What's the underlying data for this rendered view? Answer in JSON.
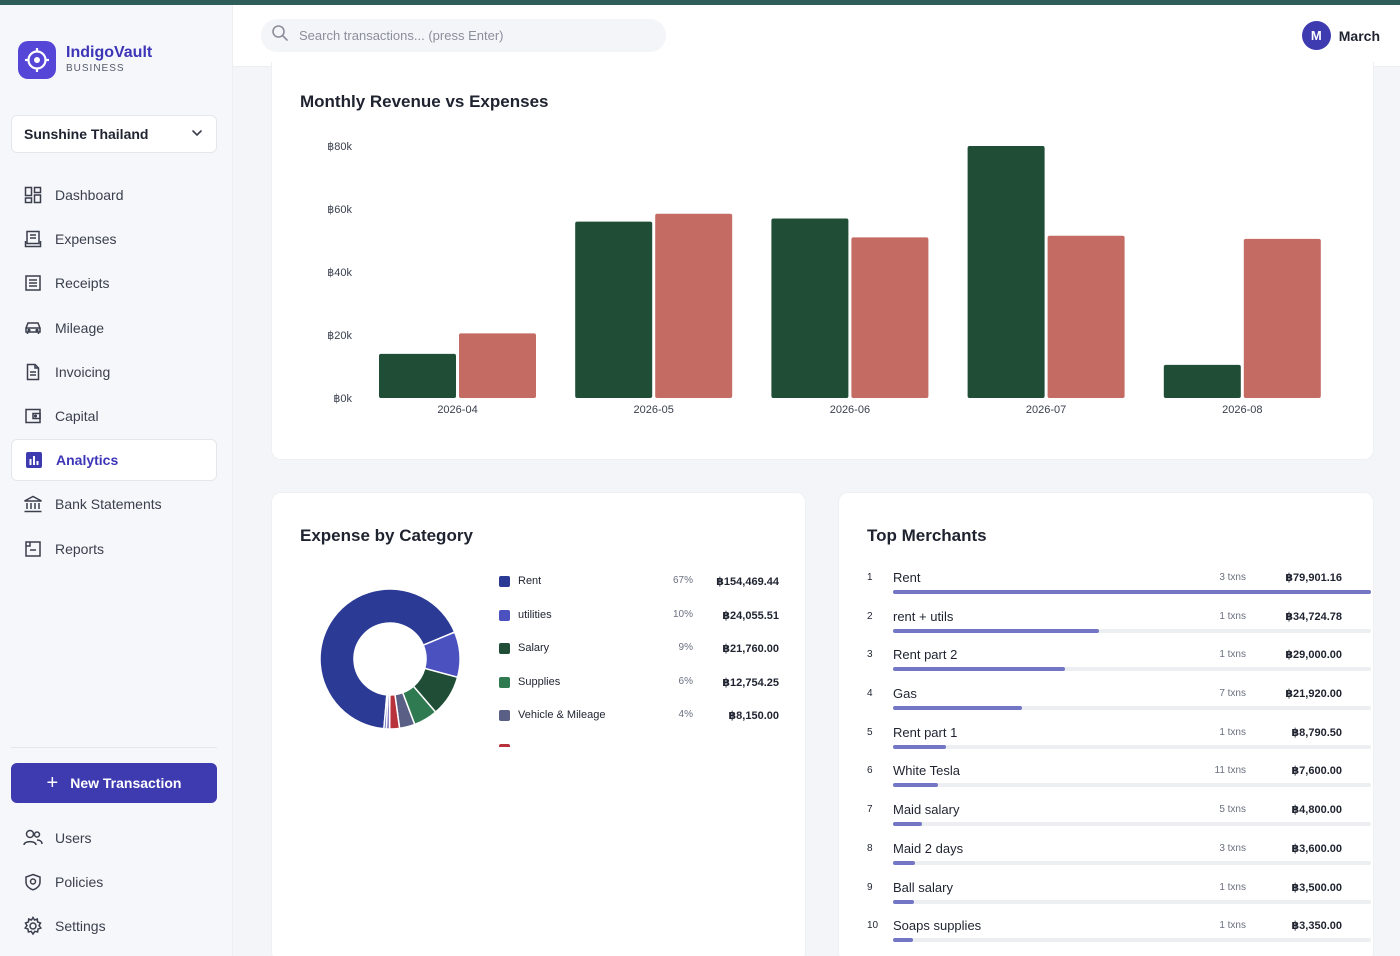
{
  "brand": {
    "name": "IndigoVault",
    "subtitle": "BUSINESS"
  },
  "org_selector": {
    "value": "Sunshine Thailand"
  },
  "nav": [
    {
      "label": "Dashboard",
      "icon": "dashboard-icon"
    },
    {
      "label": "Expenses",
      "icon": "expenses-icon"
    },
    {
      "label": "Receipts",
      "icon": "receipts-icon"
    },
    {
      "label": "Mileage",
      "icon": "car-icon"
    },
    {
      "label": "Invoicing",
      "icon": "invoice-icon"
    },
    {
      "label": "Capital",
      "icon": "wallet-icon"
    },
    {
      "label": "Analytics",
      "icon": "analytics-icon",
      "active": true
    },
    {
      "label": "Bank Statements",
      "icon": "bank-icon"
    },
    {
      "label": "Reports",
      "icon": "reports-icon"
    }
  ],
  "new_transaction": {
    "label": "New Transaction"
  },
  "nav_bottom": [
    {
      "label": "Users",
      "icon": "users-icon"
    },
    {
      "label": "Policies",
      "icon": "shield-icon"
    },
    {
      "label": "Settings",
      "icon": "gear-icon"
    }
  ],
  "header": {
    "search_placeholder": "Search transactions... (press Enter)",
    "user_initial": "M",
    "user_name": "March"
  },
  "colors": {
    "accent": "#3e3ab0",
    "revenue": "#1f4d35",
    "expenses": "#c46b63"
  },
  "chart_data": [
    {
      "type": "bar",
      "title": "Monthly Revenue vs Expenses",
      "categories": [
        "2026-04",
        "2026-05",
        "2026-06",
        "2026-07",
        "2026-08"
      ],
      "series": [
        {
          "values": [
            14000,
            56000,
            57000,
            80000,
            10500
          ],
          "color": "#1f4d35"
        },
        {
          "values": [
            20500,
            58500,
            51000,
            51500,
            50500
          ],
          "color": "#c46b63"
        }
      ],
      "yticks": [
        "฿80k",
        "฿60k",
        "฿40k",
        "฿20k",
        "฿0k"
      ],
      "ylim": [
        0,
        80000
      ],
      "grid": false,
      "legend": "none"
    },
    {
      "type": "pie",
      "title": "Expense by Category",
      "slices": [
        {
          "label": "Rent",
          "pct": "67%",
          "amount": "฿154,469.44",
          "value": 154469.44,
          "color": "#2b3a94"
        },
        {
          "label": "utilities",
          "pct": "10%",
          "amount": "฿24,055.51",
          "value": 24055.51,
          "color": "#4b52c0"
        },
        {
          "label": "Salary",
          "pct": "9%",
          "amount": "฿21,760.00",
          "value": 21760.0,
          "color": "#1f4d35"
        },
        {
          "label": "Supplies",
          "pct": "6%",
          "amount": "฿12,754.25",
          "value": 12754.25,
          "color": "#2f7a50"
        },
        {
          "label": "Vehicle & Mileage",
          "pct": "4%",
          "amount": "฿8,150.00",
          "value": 8150.0,
          "color": "#5a5f85"
        },
        {
          "label": "",
          "pct": "",
          "amount": "",
          "value": 5200,
          "color": "#b8323b"
        },
        {
          "label": "",
          "pct": "",
          "amount": "",
          "value": 1800,
          "color": "#8a7fc0"
        },
        {
          "label": "",
          "pct": "",
          "amount": "",
          "value": 1200,
          "color": "#3f4fb0"
        }
      ]
    }
  ],
  "merchants": {
    "title": "Top Merchants",
    "items": [
      {
        "rank": "1",
        "name": "Rent",
        "txns": "3 txns",
        "amount": "฿79,901.16",
        "share": 1.0
      },
      {
        "rank": "2",
        "name": "rent + utils",
        "txns": "1 txns",
        "amount": "฿34,724.78",
        "share": 0.43
      },
      {
        "rank": "3",
        "name": "Rent part 2",
        "txns": "1 txns",
        "amount": "฿29,000.00",
        "share": 0.36
      },
      {
        "rank": "4",
        "name": "Gas",
        "txns": "7 txns",
        "amount": "฿21,920.00",
        "share": 0.27
      },
      {
        "rank": "5",
        "name": "Rent part 1",
        "txns": "1 txns",
        "amount": "฿8,790.50",
        "share": 0.11
      },
      {
        "rank": "6",
        "name": "White Tesla",
        "txns": "11 txns",
        "amount": "฿7,600.00",
        "share": 0.095
      },
      {
        "rank": "7",
        "name": "Maid salary",
        "txns": "5 txns",
        "amount": "฿4,800.00",
        "share": 0.06
      },
      {
        "rank": "8",
        "name": "Maid 2 days",
        "txns": "3 txns",
        "amount": "฿3,600.00",
        "share": 0.045
      },
      {
        "rank": "9",
        "name": "Ball salary",
        "txns": "1 txns",
        "amount": "฿3,500.00",
        "share": 0.044
      },
      {
        "rank": "10",
        "name": "Soaps supplies",
        "txns": "1 txns",
        "amount": "฿3,350.00",
        "share": 0.042
      }
    ]
  }
}
